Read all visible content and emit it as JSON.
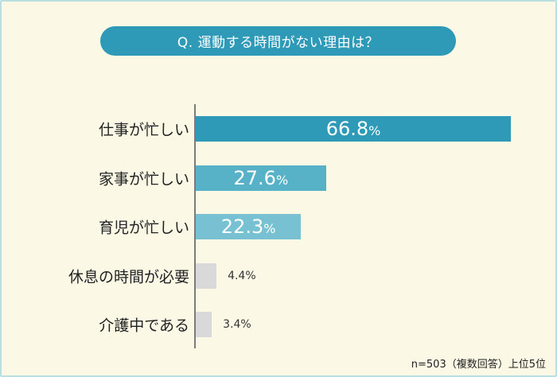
{
  "title": "Q. 運動する時間がない理由は？",
  "note": "n=503（複数回答）上位5位",
  "colors": {
    "background": "#fbf8e6",
    "title_pill": "#2e9ab7",
    "bar_top": "#2e9ab7",
    "bar_mid": "#57b2c8",
    "bar_third": "#78c1d2",
    "bar_low": "#d9d9d9"
  },
  "chart_data": {
    "type": "bar",
    "orientation": "horizontal",
    "categories": [
      "仕事が忙しい",
      "家事が忙しい",
      "育児が忙しい",
      "休息の時間が必要",
      "介護中である"
    ],
    "values": [
      66.8,
      27.6,
      22.3,
      4.4,
      3.4
    ],
    "value_labels": [
      "66.8%",
      "27.6%",
      "22.3%",
      "4.4%",
      "3.4%"
    ],
    "unit": "%",
    "title": "Q. 運動する時間がない理由は？",
    "xlabel": "",
    "ylabel": "",
    "grid": false,
    "legend": false
  }
}
